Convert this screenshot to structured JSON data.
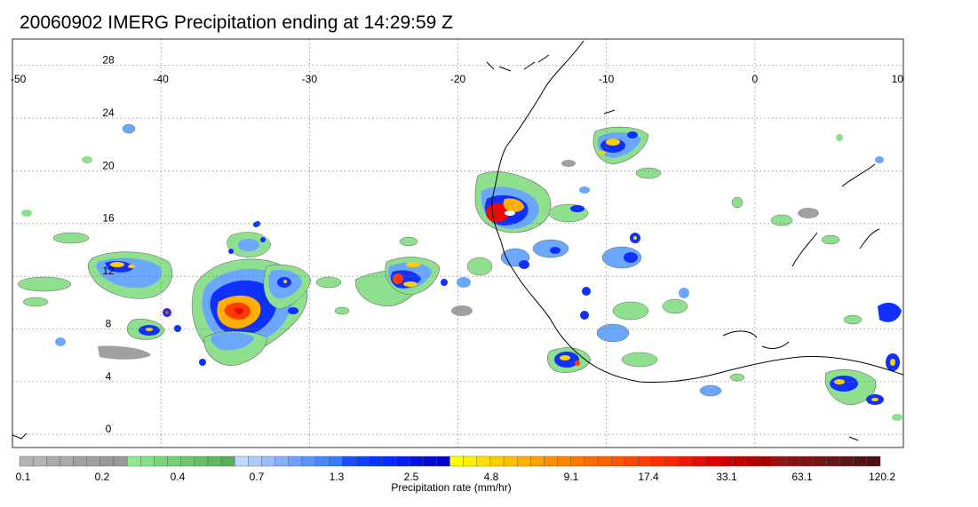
{
  "title": "20060902 IMERG Precipitation ending at 14:29:59 Z",
  "map": {
    "lon_range": [
      -50,
      10
    ],
    "lat_range": [
      -1,
      30
    ],
    "lon_ticks": [
      "-50",
      "-40",
      "-30",
      "-20",
      "-10",
      "0",
      "10"
    ],
    "lat_ticks": [
      "0",
      "4",
      "8",
      "12",
      "16",
      "20",
      "24",
      "28"
    ],
    "grid": "dotted",
    "coastline_color": "#000000"
  },
  "colorbar": {
    "label": "Precipitation rate (mm/hr)",
    "tick_labels": [
      "0.1",
      "0.2",
      "0.4",
      "0.7",
      "1.3",
      "2.5",
      "4.8",
      "9.1",
      "17.4",
      "33.1",
      "63.1",
      "120.2"
    ],
    "colors": [
      "#b4b4b4",
      "#b4b4b4",
      "#aaaaaa",
      "#aaaaaa",
      "#a0a0a0",
      "#a0a0a0",
      "#999999",
      "#999999",
      "#90e890",
      "#86e086",
      "#7ad67a",
      "#74d074",
      "#6ec66e",
      "#66c066",
      "#60b860",
      "#58b058",
      "#c4d8ff",
      "#b0caff",
      "#9cbcff",
      "#88aeff",
      "#70a0ff",
      "#5c94ff",
      "#4888ff",
      "#3a7cff",
      "#1c4cff",
      "#1040ff",
      "#0434ff",
      "#0028ff",
      "#001cf0",
      "#0010e0",
      "#0008d4",
      "#0000c8",
      "#ffff00",
      "#ffef00",
      "#ffe000",
      "#ffd000",
      "#ffc000",
      "#ffb000",
      "#ffa000",
      "#ff9000",
      "#ff8400",
      "#ff7800",
      "#ff6c00",
      "#ff6000",
      "#ff5400",
      "#ff4800",
      "#ff3c00",
      "#ff3000",
      "#ff2400",
      "#f21800",
      "#e80c00",
      "#de0000",
      "#d00000",
      "#c20000",
      "#b40000",
      "#a60000",
      "#981212",
      "#8a1414",
      "#7c1414",
      "#701616",
      "#661616",
      "#5c1414",
      "#541212",
      "#4c1010"
    ]
  }
}
